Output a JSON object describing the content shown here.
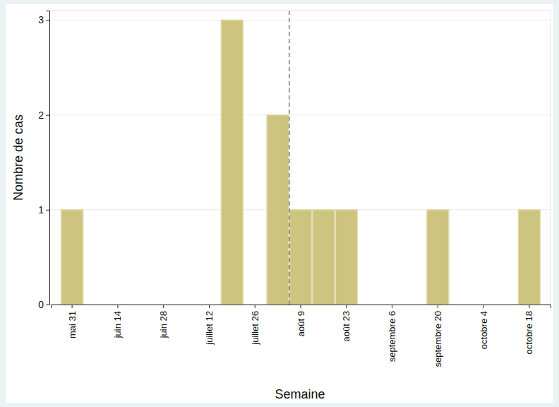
{
  "chart_data": {
    "type": "bar",
    "x_label": "Semaine",
    "y_label": "Nombre de cas",
    "categories": [
      "mai 31",
      null,
      "juin 14",
      null,
      "juin 28",
      null,
      "juillet 12",
      null,
      "juillet 26",
      null,
      "août 9",
      null,
      "août 23",
      null,
      "septembre 6",
      null,
      "septembre 20",
      null,
      "octobre 4",
      null,
      "octobre 18"
    ],
    "values": [
      1,
      0,
      0,
      0,
      0,
      0,
      0,
      3,
      0,
      2,
      1,
      1,
      1,
      0,
      0,
      0,
      1,
      0,
      0,
      0,
      1
    ],
    "color": "#ccc47f",
    "ylim": [
      0,
      3.1
    ],
    "yticks": [
      0,
      1,
      2,
      3
    ],
    "grid": true,
    "vline": 9.5
  }
}
